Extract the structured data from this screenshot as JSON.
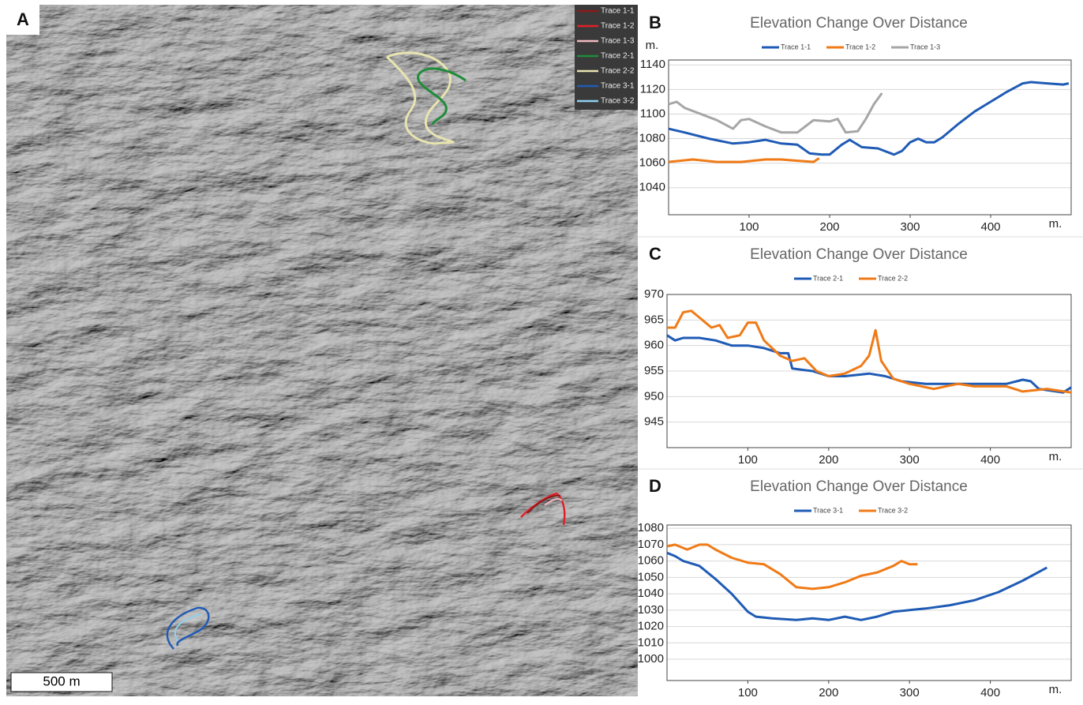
{
  "map_panel": {
    "label": "A",
    "scale_bar": "500 m",
    "legend": [
      {
        "name": "Trace 1-1",
        "color": "#8b1a1a"
      },
      {
        "name": "Trace 1-2",
        "color": "#e0202a"
      },
      {
        "name": "Trace 1-3",
        "color": "#f2b8c0"
      },
      {
        "name": "Trace 2-1",
        "color": "#1e8c3a"
      },
      {
        "name": "Trace 2-2",
        "color": "#e8e4b0"
      },
      {
        "name": "Trace 3-1",
        "color": "#1f5bb5"
      },
      {
        "name": "Trace 3-2",
        "color": "#8fd0f0"
      }
    ]
  },
  "chart_data": [
    {
      "type": "line",
      "panel": "B",
      "title": "Elevation Change Over Distance",
      "y_label": "m.",
      "x_label": "m.",
      "xlim": [
        0,
        500
      ],
      "xticks": [
        100,
        200,
        300,
        400
      ],
      "ylim": [
        1018,
        1144
      ],
      "yticks": [
        1040,
        1060,
        1080,
        1100,
        1120,
        1140
      ],
      "grid": true,
      "series": [
        {
          "name": "Trace 1-1",
          "color": "#1f5bb5",
          "x": [
            0,
            20,
            50,
            80,
            100,
            120,
            140,
            160,
            175,
            190,
            200,
            215,
            225,
            240,
            260,
            280,
            290,
            300,
            310,
            320,
            330,
            340,
            360,
            380,
            400,
            420,
            440,
            450,
            470,
            490,
            497
          ],
          "values": [
            1088,
            1085,
            1080,
            1076,
            1077,
            1079,
            1076,
            1075,
            1068,
            1067,
            1067,
            1075,
            1079,
            1073,
            1072,
            1067,
            1070,
            1077,
            1080,
            1077,
            1077,
            1081,
            1092,
            1102,
            1110,
            1118,
            1125,
            1126,
            1125,
            1124,
            1125
          ]
        },
        {
          "name": "Trace 1-2",
          "color": "#f07a16",
          "x": [
            0,
            30,
            60,
            90,
            120,
            140,
            160,
            180,
            187
          ],
          "values": [
            1061,
            1063,
            1061,
            1061,
            1063,
            1063,
            1062,
            1061,
            1064
          ]
        },
        {
          "name": "Trace 1-3",
          "color": "#a6a6a6",
          "x": [
            0,
            10,
            20,
            40,
            60,
            80,
            90,
            100,
            120,
            140,
            160,
            170,
            180,
            200,
            210,
            220,
            235,
            245,
            255,
            265
          ],
          "values": [
            1108,
            1110,
            1105,
            1100,
            1095,
            1088,
            1095,
            1096,
            1090,
            1085,
            1085,
            1090,
            1095,
            1094,
            1096,
            1085,
            1086,
            1096,
            1108,
            1117
          ]
        }
      ]
    },
    {
      "type": "line",
      "panel": "C",
      "title": "Elevation Change Over Distance",
      "x_label": "m.",
      "xlim": [
        0,
        500
      ],
      "xticks": [
        100,
        200,
        300,
        400
      ],
      "ylim": [
        940,
        970
      ],
      "yticks": [
        945,
        950,
        955,
        960,
        965,
        970
      ],
      "grid": true,
      "series": [
        {
          "name": "Trace 2-1",
          "color": "#1f5bb5",
          "x": [
            0,
            10,
            20,
            40,
            60,
            80,
            100,
            120,
            140,
            150,
            155,
            180,
            200,
            220,
            250,
            270,
            290,
            320,
            350,
            380,
            420,
            440,
            450,
            460,
            490,
            500
          ],
          "values": [
            962,
            961,
            961.5,
            961.5,
            961,
            960,
            960,
            959.5,
            958.5,
            958.5,
            955.5,
            955,
            954,
            954,
            954.5,
            954,
            953,
            952.5,
            952.5,
            952.5,
            952.5,
            953.3,
            953,
            951.5,
            950.8,
            951.8
          ]
        },
        {
          "name": "Trace 2-2",
          "color": "#f07a16",
          "x": [
            0,
            10,
            20,
            30,
            40,
            55,
            65,
            75,
            90,
            100,
            110,
            120,
            140,
            155,
            170,
            185,
            200,
            220,
            240,
            250,
            258,
            265,
            280,
            300,
            330,
            360,
            380,
            420,
            440,
            470,
            500
          ],
          "values": [
            963.5,
            963.5,
            966.5,
            966.8,
            965.5,
            963.5,
            964,
            961.5,
            962,
            964.5,
            964.5,
            961,
            958,
            957,
            957.5,
            955,
            954,
            954.5,
            956,
            958,
            963,
            957,
            953.5,
            952.5,
            951.5,
            952.5,
            952,
            952,
            951,
            951.5,
            950.8
          ]
        }
      ]
    },
    {
      "type": "line",
      "panel": "D",
      "title": "Elevation Change Over Distance",
      "x_label": "m.",
      "xlim": [
        0,
        500
      ],
      "xticks": [
        100,
        200,
        300,
        400
      ],
      "ylim": [
        987,
        1082
      ],
      "yticks": [
        1000,
        1010,
        1020,
        1030,
        1040,
        1050,
        1060,
        1070,
        1080
      ],
      "grid": true,
      "series": [
        {
          "name": "Trace 3-1",
          "color": "#1f5bb5",
          "x": [
            0,
            10,
            20,
            40,
            60,
            80,
            100,
            110,
            130,
            160,
            180,
            200,
            220,
            240,
            260,
            280,
            300,
            320,
            350,
            380,
            410,
            440,
            470
          ],
          "values": [
            1065,
            1063,
            1060,
            1057,
            1049,
            1040,
            1029,
            1026,
            1025,
            1024,
            1025,
            1024,
            1026,
            1024,
            1026,
            1029,
            1030,
            1031,
            1033,
            1036,
            1041,
            1048,
            1056
          ]
        },
        {
          "name": "Trace 3-2",
          "color": "#f07a16",
          "x": [
            0,
            10,
            25,
            40,
            50,
            60,
            80,
            100,
            120,
            140,
            160,
            180,
            200,
            220,
            240,
            260,
            280,
            290,
            300,
            310
          ],
          "values": [
            1069,
            1070,
            1067,
            1070,
            1070,
            1067,
            1062,
            1059,
            1058,
            1052,
            1044,
            1043,
            1044,
            1047,
            1051,
            1053,
            1057,
            1060,
            1058,
            1058
          ]
        }
      ]
    }
  ]
}
